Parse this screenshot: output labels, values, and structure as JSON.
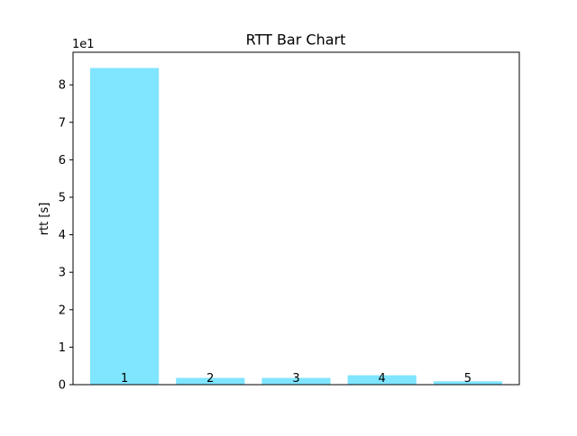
{
  "chart_data": {
    "type": "bar",
    "title": "RTT Bar Chart",
    "xlabel": "",
    "ylabel": "rtt [s]",
    "scale_label": "1e1",
    "categories": [
      "1",
      "2",
      "3",
      "4",
      "5"
    ],
    "values": [
      84.5,
      1.8,
      1.8,
      2.5,
      0.9
    ],
    "ylim": [
      0,
      88.7
    ],
    "yticks": [
      0,
      10,
      20,
      30,
      40,
      50,
      60,
      70,
      80
    ],
    "ytick_labels": [
      "0",
      "1",
      "2",
      "3",
      "4",
      "5",
      "6",
      "7",
      "8"
    ],
    "bar_color": "#80e5ff",
    "grid": false,
    "legend": "none"
  }
}
